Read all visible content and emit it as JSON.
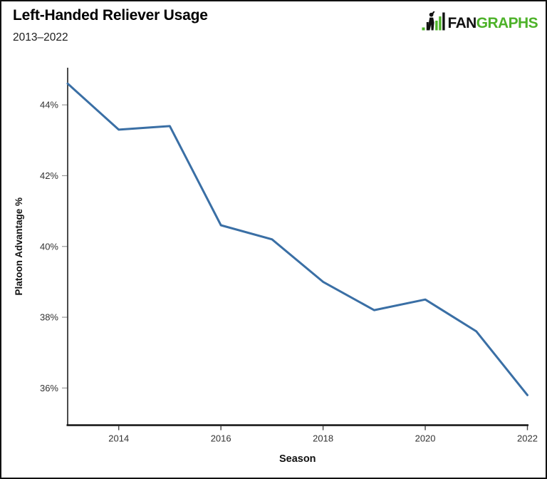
{
  "header": {
    "title": "Left-Handed Reliever Usage",
    "subtitle": "2013–2022",
    "logo": {
      "fan": "FAN",
      "graphs": "GRAPHS",
      "green": "#4db229",
      "black": "#111111"
    }
  },
  "chart_data": {
    "type": "line",
    "title": "Left-Handed Reliever Usage",
    "subtitle": "2013–2022",
    "x": [
      2013,
      2014,
      2015,
      2016,
      2017,
      2018,
      2019,
      2020,
      2021,
      2022
    ],
    "series": [
      {
        "name": "Platoon Advantage %",
        "values": [
          44.6,
          43.3,
          43.4,
          40.6,
          40.2,
          39.0,
          38.2,
          38.5,
          37.6,
          35.8
        ]
      }
    ],
    "xlabel": "Season",
    "ylabel": "Platoon Advantage %",
    "xticks": [
      2014,
      2016,
      2018,
      2020,
      2022
    ],
    "xtick_labels": [
      "2014",
      "2016",
      "2018",
      "2020",
      "2022"
    ],
    "yticks": [
      36,
      38,
      40,
      42,
      44
    ],
    "ytick_labels": [
      "36%",
      "38%",
      "40%",
      "42%",
      "44%"
    ],
    "xlim": [
      2013,
      2022
    ],
    "ylim": [
      34.95,
      45.05
    ],
    "grid": false,
    "legend": "none",
    "line_color": "#3a6fa5",
    "axis_color": "#111111",
    "tick_label_color": "#333333"
  }
}
